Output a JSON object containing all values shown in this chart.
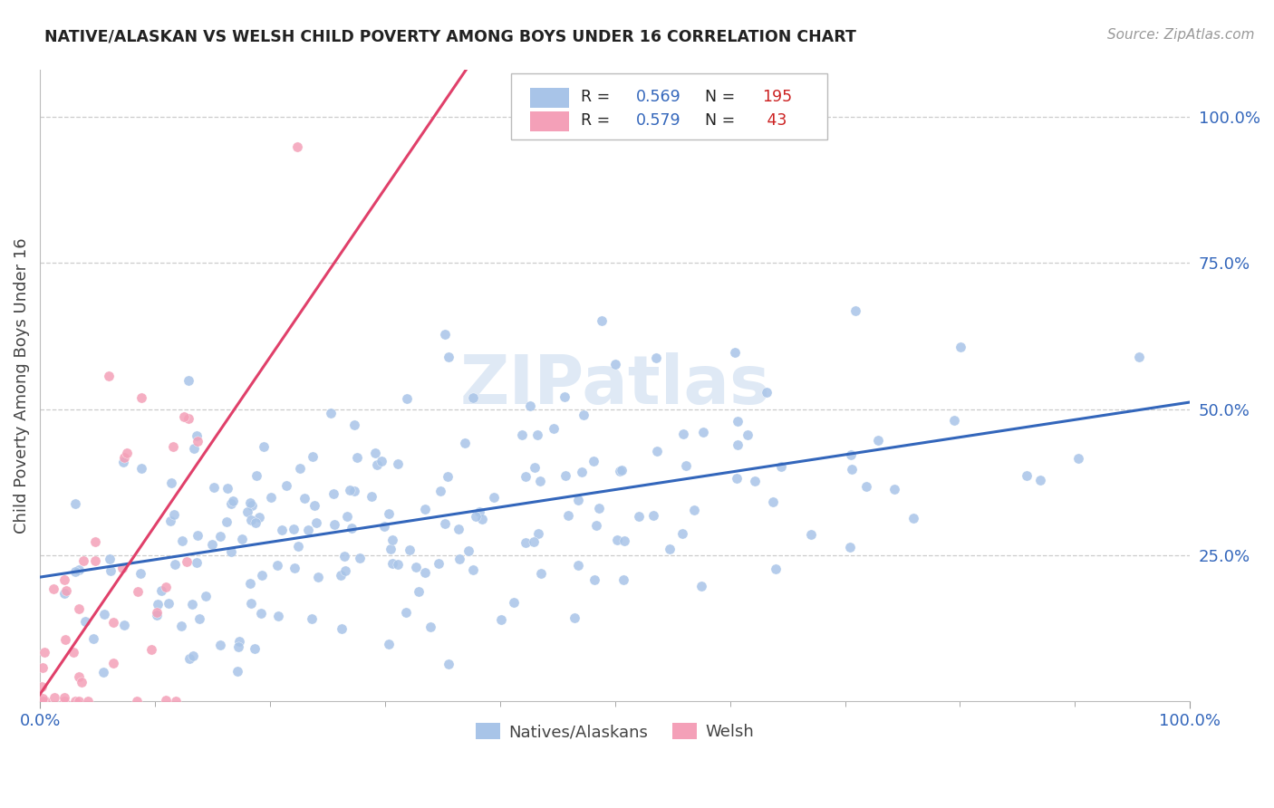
{
  "title": "NATIVE/ALASKAN VS WELSH CHILD POVERTY AMONG BOYS UNDER 16 CORRELATION CHART",
  "source": "Source: ZipAtlas.com",
  "ylabel": "Child Poverty Among Boys Under 16",
  "watermark": "ZIPatlas",
  "natives_color": "#a8c4e8",
  "welsh_color": "#f4a0b8",
  "natives_line_color": "#3366bb",
  "welsh_line_color": "#e0406a",
  "R_color": "#3366bb",
  "N_color": "#cc2222",
  "background_color": "#ffffff",
  "grid_color": "#cccccc",
  "natives_R": 0.569,
  "natives_N": 195,
  "welsh_R": 0.579,
  "welsh_N": 43,
  "seed_natives": 42,
  "seed_welsh": 7
}
